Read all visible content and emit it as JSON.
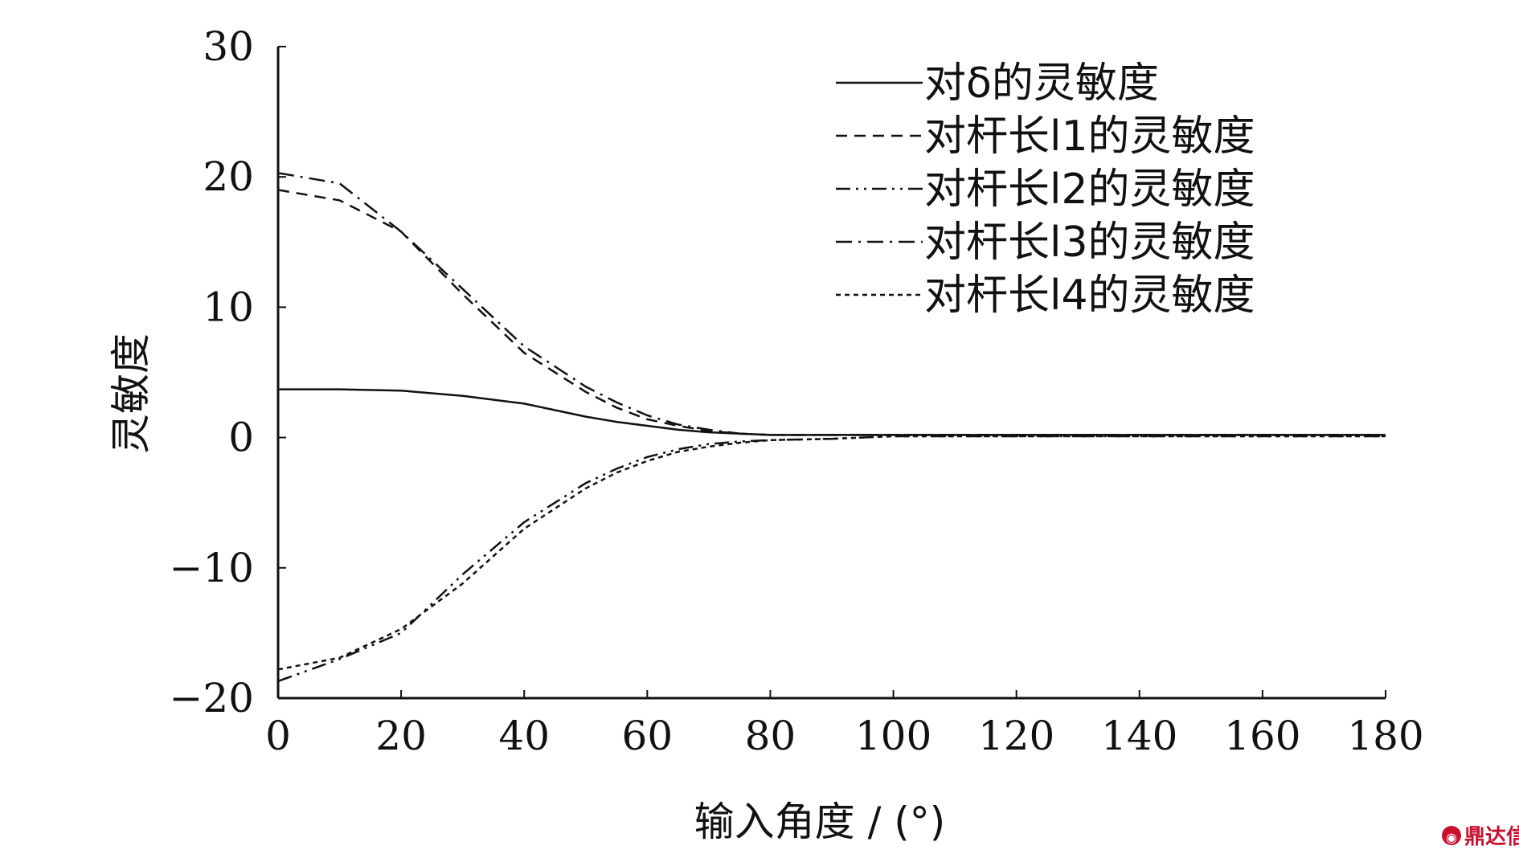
{
  "chart_data": {
    "type": "line",
    "title": "",
    "xlabel": "输入角度 / (°)",
    "ylabel": "灵敏度",
    "xlim": [
      0,
      180
    ],
    "ylim": [
      -20,
      30
    ],
    "xticks": [
      0,
      20,
      40,
      60,
      80,
      100,
      120,
      140,
      160,
      180
    ],
    "yticks": [
      -20,
      -10,
      0,
      10,
      20,
      30
    ],
    "ytick_labels": [
      "−20",
      "−10",
      "0",
      "10",
      "20",
      "30"
    ],
    "grid": false,
    "legend_position": "top-right",
    "series": [
      {
        "name": "对δ的灵敏度",
        "dash": "solid",
        "x": [
          0,
          10,
          20,
          30,
          40,
          45,
          50,
          55,
          60,
          65,
          70,
          75,
          80,
          90,
          100,
          120,
          140,
          160,
          180
        ],
        "y": [
          3.7,
          3.7,
          3.6,
          3.2,
          2.6,
          2.1,
          1.6,
          1.2,
          0.9,
          0.6,
          0.4,
          0.3,
          0.2,
          0.2,
          0.2,
          0.2,
          0.2,
          0.2,
          0.2
        ]
      },
      {
        "name": "对杆长l1的灵敏度",
        "dash": "dash",
        "x": [
          0,
          10,
          20,
          30,
          40,
          50,
          55,
          60,
          65,
          70,
          75,
          80,
          90,
          100,
          120,
          140,
          160,
          180
        ],
        "y": [
          19.0,
          18.2,
          15.8,
          11.0,
          6.5,
          3.5,
          2.3,
          1.4,
          0.9,
          0.5,
          0.3,
          0.2,
          0.2,
          0.2,
          0.2,
          0.2,
          0.2,
          0.2
        ]
      },
      {
        "name": "对杆长l2的灵敏度",
        "dash": "dashdotdot",
        "x": [
          0,
          10,
          20,
          30,
          40,
          50,
          55,
          60,
          65,
          70,
          75,
          80,
          90,
          100,
          120,
          140,
          160,
          180
        ],
        "y": [
          -18.7,
          -17.0,
          -15.0,
          -10.5,
          -6.5,
          -3.5,
          -2.4,
          -1.5,
          -0.9,
          -0.5,
          -0.3,
          -0.2,
          -0.1,
          0.1,
          0.1,
          0.1,
          0.1,
          0.1
        ]
      },
      {
        "name": "对杆长l3的灵敏度",
        "dash": "dashdot",
        "x": [
          0,
          10,
          20,
          30,
          40,
          50,
          55,
          60,
          65,
          70,
          75,
          80,
          90,
          100,
          120,
          140,
          160,
          180
        ],
        "y": [
          20.3,
          19.5,
          15.8,
          11.4,
          7.0,
          3.9,
          2.7,
          1.7,
          1.0,
          0.6,
          0.3,
          0.2,
          0.2,
          0.2,
          0.2,
          0.2,
          0.2,
          0.2
        ]
      },
      {
        "name": "对杆长l4的灵敏度",
        "dash": "dot",
        "x": [
          0,
          10,
          20,
          30,
          40,
          50,
          55,
          60,
          65,
          70,
          75,
          80,
          90,
          100,
          120,
          140,
          160,
          180
        ],
        "y": [
          -17.8,
          -16.9,
          -14.7,
          -11.2,
          -7.0,
          -3.9,
          -2.7,
          -1.8,
          -1.1,
          -0.7,
          -0.4,
          -0.2,
          -0.1,
          0.1,
          0.1,
          0.1,
          0.1,
          0.1
        ]
      }
    ]
  },
  "watermark": {
    "text": "鼎达信",
    "color": "#c8102e"
  }
}
